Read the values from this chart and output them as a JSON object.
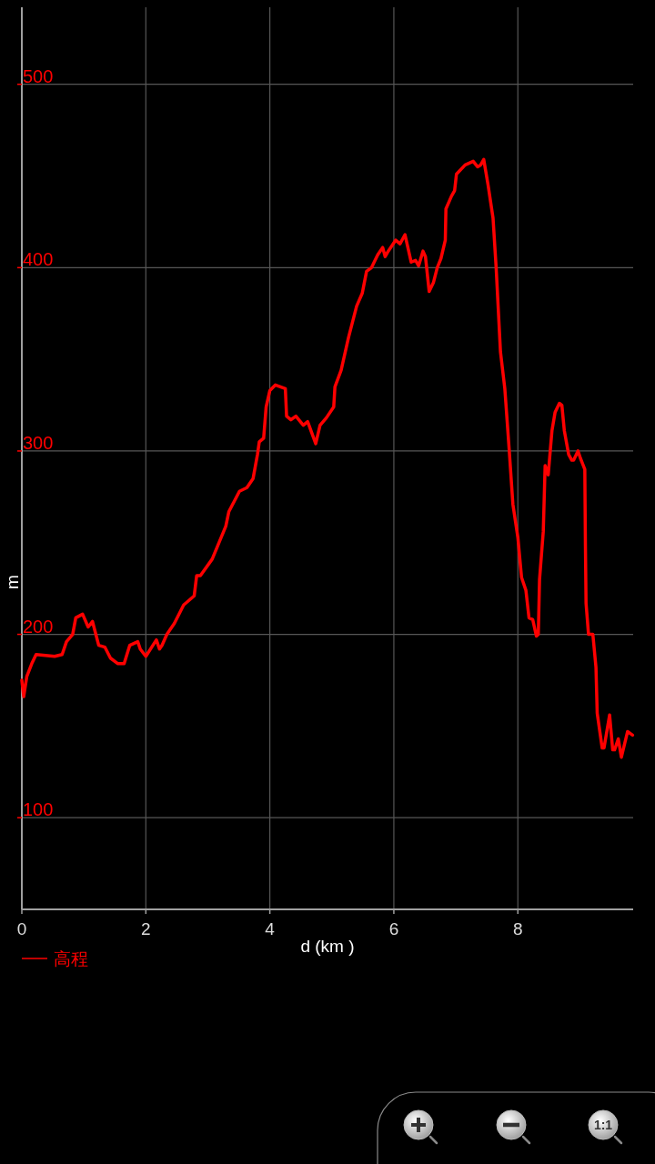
{
  "chart_data": {
    "type": "line",
    "xlabel": "d (km )",
    "ylabel": "m",
    "x": [
      0,
      0.03,
      0.08,
      0.16,
      0.23,
      0.53,
      0.65,
      0.72,
      0.82,
      0.87,
      0.98,
      1.07,
      1.14,
      1.24,
      1.34,
      1.43,
      1.55,
      1.65,
      1.74,
      1.87,
      1.91,
      2.0,
      2.17,
      2.22,
      2.26,
      2.34,
      2.46,
      2.61,
      2.78,
      2.82,
      2.88,
      3.07,
      3.29,
      3.34,
      3.51,
      3.63,
      3.73,
      3.8,
      3.83,
      3.9,
      3.94,
      4.0,
      4.09,
      4.25,
      4.27,
      4.34,
      4.42,
      4.54,
      4.61,
      4.74,
      4.81,
      4.91,
      5.03,
      5.05,
      5.15,
      5.27,
      5.4,
      5.49,
      5.56,
      5.64,
      5.74,
      5.82,
      5.86,
      5.91,
      6.03,
      6.1,
      6.18,
      6.28,
      6.35,
      6.4,
      6.47,
      6.51,
      6.57,
      6.64,
      6.7,
      6.76,
      6.83,
      6.84,
      6.93,
      6.98,
      7.01,
      7.15,
      7.28,
      7.35,
      7.4,
      7.45,
      7.52,
      7.6,
      7.65,
      7.72,
      7.79,
      7.86,
      7.92,
      8.0,
      8.06,
      8.13,
      8.18,
      8.24,
      8.3,
      8.33,
      8.35,
      8.41,
      8.44,
      8.49,
      8.55,
      8.6,
      8.67,
      8.71,
      8.75,
      8.82,
      8.87,
      8.9,
      8.97,
      9.01,
      9.08,
      9.09,
      9.1,
      9.14,
      9.21,
      9.26,
      9.28,
      9.36,
      9.39,
      9.48,
      9.53,
      9.56,
      9.62,
      9.67,
      9.77,
      9.85
    ],
    "series": [
      {
        "name": "高程",
        "color": "#ff0000",
        "values": [
          175,
          166,
          177,
          184,
          189,
          188,
          189,
          196,
          200,
          209,
          211,
          204,
          207,
          194,
          193,
          187,
          184,
          184,
          194,
          196,
          192,
          188,
          197,
          192,
          194,
          200,
          206,
          216,
          221,
          232,
          232,
          241,
          259,
          267,
          278,
          280,
          285,
          298,
          305,
          307,
          324,
          333,
          336,
          334,
          319,
          317,
          319,
          314,
          316,
          304,
          314,
          318,
          324,
          335,
          344,
          362,
          379,
          386,
          398,
          400,
          407,
          411,
          406,
          409,
          415,
          413,
          418,
          403,
          404,
          401,
          409,
          406,
          387,
          392,
          400,
          405,
          415,
          432,
          439,
          442,
          451,
          456,
          458,
          455,
          456,
          459,
          445,
          427,
          400,
          354,
          334,
          301,
          271,
          253,
          231,
          224,
          209,
          208,
          199,
          200,
          230,
          256,
          292,
          287,
          311,
          321,
          326,
          325,
          311,
          298,
          295,
          295,
          300,
          296,
          290,
          248,
          217,
          200,
          200,
          182,
          157,
          138,
          138,
          156,
          137,
          137,
          143,
          133,
          147,
          145
        ]
      }
    ],
    "xlim": [
      0,
      9.86
    ],
    "ylim": [
      50,
      542
    ],
    "xticks": [
      0,
      2,
      4,
      6,
      8
    ],
    "yticks": [
      100,
      200,
      300,
      400,
      500
    ],
    "grid": true,
    "legend": "bottom left",
    "marker": "none",
    "line_style": "solid",
    "annotations": [
      "1:1"
    ]
  }
}
